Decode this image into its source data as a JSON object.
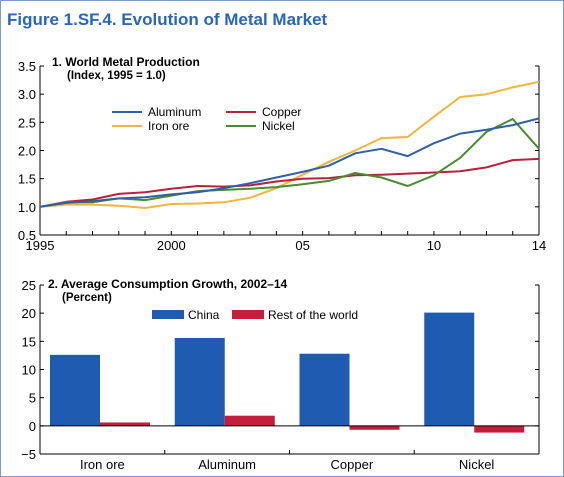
{
  "figure_title": "Figure 1.SF.4.  Evolution of Metal Market",
  "chart_data": [
    {
      "type": "line",
      "title": "1. World Metal Production",
      "subtitle": "(Index, 1995 = 1.0)",
      "xlabel": "",
      "ylabel": "",
      "x_tick_labels": [
        "1995",
        "2000",
        "05",
        "10",
        "14"
      ],
      "x_tick_values": [
        1995,
        2000,
        2005,
        2010,
        2014
      ],
      "xlim": [
        1995,
        2014
      ],
      "ylim": [
        0.5,
        3.5
      ],
      "y_ticks": [
        "0.5",
        "1.0",
        "1.5",
        "2.0",
        "2.5",
        "3.0",
        "3.5"
      ],
      "grid": false,
      "legend_position": "upper-center",
      "x": [
        1995,
        1996,
        1997,
        1998,
        1999,
        2000,
        2001,
        2002,
        2003,
        2004,
        2005,
        2006,
        2007,
        2008,
        2009,
        2010,
        2011,
        2012,
        2013,
        2014
      ],
      "series": [
        {
          "name": "Aluminum",
          "color": "#2e60a8",
          "values": [
            1.0,
            1.07,
            1.1,
            1.15,
            1.17,
            1.22,
            1.26,
            1.33,
            1.42,
            1.52,
            1.62,
            1.73,
            1.95,
            2.03,
            1.9,
            2.13,
            2.3,
            2.37,
            2.45,
            2.57
          ]
        },
        {
          "name": "Copper",
          "color": "#b5223a",
          "values": [
            1.0,
            1.09,
            1.13,
            1.23,
            1.26,
            1.32,
            1.37,
            1.36,
            1.38,
            1.45,
            1.5,
            1.51,
            1.56,
            1.57,
            1.59,
            1.61,
            1.63,
            1.7,
            1.83,
            1.85
          ]
        },
        {
          "name": "Iron ore",
          "color": "#f2b43c",
          "values": [
            1.0,
            1.04,
            1.04,
            1.02,
            0.98,
            1.05,
            1.06,
            1.08,
            1.16,
            1.33,
            1.57,
            1.8,
            2.0,
            2.22,
            2.24,
            2.6,
            2.95,
            3.0,
            3.12,
            3.22
          ]
        },
        {
          "name": "Nickel",
          "color": "#4a8a32",
          "values": [
            1.0,
            1.08,
            1.08,
            1.15,
            1.12,
            1.2,
            1.28,
            1.3,
            1.32,
            1.35,
            1.4,
            1.46,
            1.6,
            1.52,
            1.37,
            1.56,
            1.87,
            2.33,
            2.56,
            2.03
          ]
        }
      ]
    },
    {
      "type": "bar",
      "title": "2. Average Consumption Growth, 2002–14",
      "subtitle": "(Percent)",
      "xlabel": "",
      "ylabel": "",
      "categories": [
        "Iron ore",
        "Aluminum",
        "Copper",
        "Nickel"
      ],
      "ylim": [
        -5,
        25
      ],
      "y_ticks": [
        "−5",
        "0",
        "5",
        "10",
        "15",
        "20",
        "25"
      ],
      "grid": false,
      "legend_position": "top-center",
      "series": [
        {
          "name": "China",
          "color": "#1f5bb0",
          "values": [
            12.6,
            15.6,
            12.8,
            20.1
          ]
        },
        {
          "name": "Rest of the world",
          "color": "#c41e3a",
          "values": [
            0.6,
            1.8,
            -0.7,
            -1.2
          ]
        }
      ]
    }
  ]
}
